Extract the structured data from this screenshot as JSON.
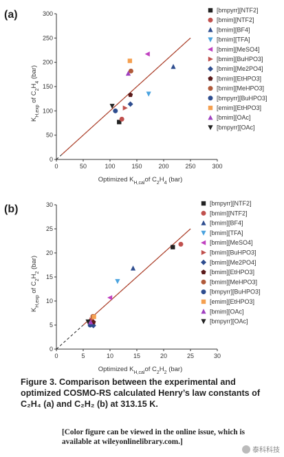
{
  "chart_data": [
    {
      "type": "scatter",
      "panel_label": "(a)",
      "xlabel_html": "Optimized K<tspan baseline-shift='sub' font-size='7'>H,cal</tspan>of C<tspan baseline-shift='sub' font-size='7'>2</tspan>H<tspan baseline-shift='sub' font-size='7'>4</tspan> (bar)",
      "ylabel_html": "K<tspan baseline-shift='sub' font-size='7'>H,exp</tspan> of C<tspan baseline-shift='sub' font-size='7'>2</tspan>H<tspan baseline-shift='sub' font-size='7'>4</tspan> (bar)",
      "xlabel": "Optimized KH,cal of C2H4 (bar)",
      "ylabel": "KH,exp of C2H4 (bar)",
      "xlim": [
        0,
        300
      ],
      "ylim": [
        0,
        300
      ],
      "xticks": [
        0,
        50,
        100,
        150,
        200,
        250,
        300
      ],
      "yticks": [
        0,
        50,
        100,
        150,
        200,
        250,
        300
      ],
      "fit_line": {
        "x": [
          10,
          250
        ],
        "y": [
          10,
          250
        ]
      },
      "series": [
        {
          "name": "[bmpyrr][NTF2]",
          "marker": "square",
          "color": "#222222",
          "x": [
            117
          ],
          "y": [
            77
          ]
        },
        {
          "name": "[bmim][NTF2]",
          "marker": "circle",
          "color": "#c0504d",
          "x": [
            122
          ],
          "y": [
            83
          ]
        },
        {
          "name": "[bmim][BF4]",
          "marker": "triangle-up",
          "color": "#2e4d8f",
          "x": [
            218
          ],
          "y": [
            191
          ]
        },
        {
          "name": "[bmim][TFA]",
          "marker": "triangle-down",
          "color": "#4aa3df",
          "x": [
            172
          ],
          "y": [
            135
          ]
        },
        {
          "name": "[bmim][MeSO4]",
          "marker": "triangle-left",
          "color": "#c040c0",
          "x": [
            170
          ],
          "y": [
            217
          ]
        },
        {
          "name": "[bmim][BuHPO3]",
          "marker": "triangle-right",
          "color": "#c0504d",
          "x": [
            128
          ],
          "y": [
            106
          ]
        },
        {
          "name": "[bmim][Me2PO4]",
          "marker": "diamond",
          "color": "#2e4d8f",
          "x": [
            138
          ],
          "y": [
            114
          ]
        },
        {
          "name": "[bmim][EtHPO3]",
          "marker": "pentagon",
          "color": "#5a1a1a",
          "x": [
            138
          ],
          "y": [
            133
          ]
        },
        {
          "name": "[bmim][MeHPO3]",
          "marker": "circle",
          "color": "#b05a3a",
          "x": [
            139
          ],
          "y": [
            182
          ]
        },
        {
          "name": "[bmpyrr][BuHPO3]",
          "marker": "circle",
          "color": "#2e4d8f",
          "x": [
            110
          ],
          "y": [
            100
          ]
        },
        {
          "name": "[emim][EtHPO3]",
          "marker": "square",
          "color": "#f5a050",
          "x": [
            137
          ],
          "y": [
            203
          ]
        },
        {
          "name": "[bmim][OAc]",
          "marker": "triangle-up",
          "color": "#a040c0",
          "x": [
            134
          ],
          "y": [
            177
          ]
        },
        {
          "name": "[bmpyrr][OAc]",
          "marker": "triangle-down",
          "color": "#222222",
          "x": [
            104
          ],
          "y": [
            110
          ]
        }
      ]
    },
    {
      "type": "scatter",
      "panel_label": "(b)",
      "xlabel_html": "Optimized K<tspan baseline-shift='sub' font-size='7'>H,cal</tspan>of C<tspan baseline-shift='sub' font-size='7'>2</tspan>H<tspan baseline-shift='sub' font-size='7'>2</tspan> (bar)",
      "ylabel_html": "K<tspan baseline-shift='sub' font-size='7'>H,exp</tspan> of C<tspan baseline-shift='sub' font-size='7'>2</tspan>H<tspan baseline-shift='sub' font-size='7'>2</tspan> (bar)",
      "xlabel": "Optimized KH,cal of C2H2 (bar)",
      "ylabel": "KH,exp of C2H2 (bar)",
      "xlim": [
        0,
        30
      ],
      "ylim": [
        0,
        30
      ],
      "xticks": [
        0,
        5,
        10,
        15,
        20,
        25,
        30
      ],
      "yticks": [
        0,
        5,
        10,
        15,
        20,
        25,
        30
      ],
      "fit_line": {
        "x": [
          5,
          25
        ],
        "y": [
          5,
          25
        ]
      },
      "series": [
        {
          "name": "[bmpyrr][NTF2]",
          "marker": "square",
          "color": "#222222",
          "x": [
            21.7
          ],
          "y": [
            21.2
          ]
        },
        {
          "name": "[bmim][NTF2]",
          "marker": "circle",
          "color": "#c0504d",
          "x": [
            23.2
          ],
          "y": [
            21.8
          ]
        },
        {
          "name": "[bmim][BF4]",
          "marker": "triangle-up",
          "color": "#2e4d8f",
          "x": [
            14.3
          ],
          "y": [
            16.8
          ]
        },
        {
          "name": "[bmim][TFA]",
          "marker": "triangle-down",
          "color": "#4aa3df",
          "x": [
            11.4
          ],
          "y": [
            14.1
          ]
        },
        {
          "name": "[bmim][MeSO4]",
          "marker": "triangle-left",
          "color": "#c040c0",
          "x": [
            10.0
          ],
          "y": [
            10.7
          ]
        },
        {
          "name": "[bmim][BuHPO3]",
          "marker": "triangle-right",
          "color": "#c0504d",
          "x": [
            6.6
          ],
          "y": [
            6.1
          ]
        },
        {
          "name": "[bmim][Me2PO4]",
          "marker": "diamond",
          "color": "#2e4d8f",
          "x": [
            6.9
          ],
          "y": [
            4.9
          ]
        },
        {
          "name": "[bmim][EtHPO3]",
          "marker": "pentagon",
          "color": "#5a1a1a",
          "x": [
            6.9
          ],
          "y": [
            5.6
          ]
        },
        {
          "name": "[bmim][MeHPO3]",
          "marker": "circle",
          "color": "#b05a3a",
          "x": [
            6.8
          ],
          "y": [
            6.8
          ]
        },
        {
          "name": "[bmpyrr][BuHPO3]",
          "marker": "circle",
          "color": "#2e4d8f",
          "x": [
            6.3
          ],
          "y": [
            5.0
          ]
        },
        {
          "name": "[emim][EtHPO3]",
          "marker": "square",
          "color": "#f5a050",
          "x": [
            7.0
          ],
          "y": [
            6.7
          ]
        },
        {
          "name": "[bmim][OAc]",
          "marker": "triangle-up",
          "color": "#a040c0",
          "x": [
            6.4
          ],
          "y": [
            5.6
          ]
        },
        {
          "name": "[bmpyrr][OAc]",
          "marker": "triangle-down",
          "color": "#222222",
          "x": [
            5.9
          ],
          "y": [
            5.7
          ]
        }
      ]
    }
  ],
  "caption": "Figure 3. Comparison between the experimental and optimized COSMO-RS calculated Henry’s law constants of C₂H₄ (a) and C₂H₂ (b) at 313.15 K.",
  "note": "[Color figure can be viewed in the online issue, which is available at wileyonlinelibrary.com.]",
  "watermark": "泰科科技"
}
